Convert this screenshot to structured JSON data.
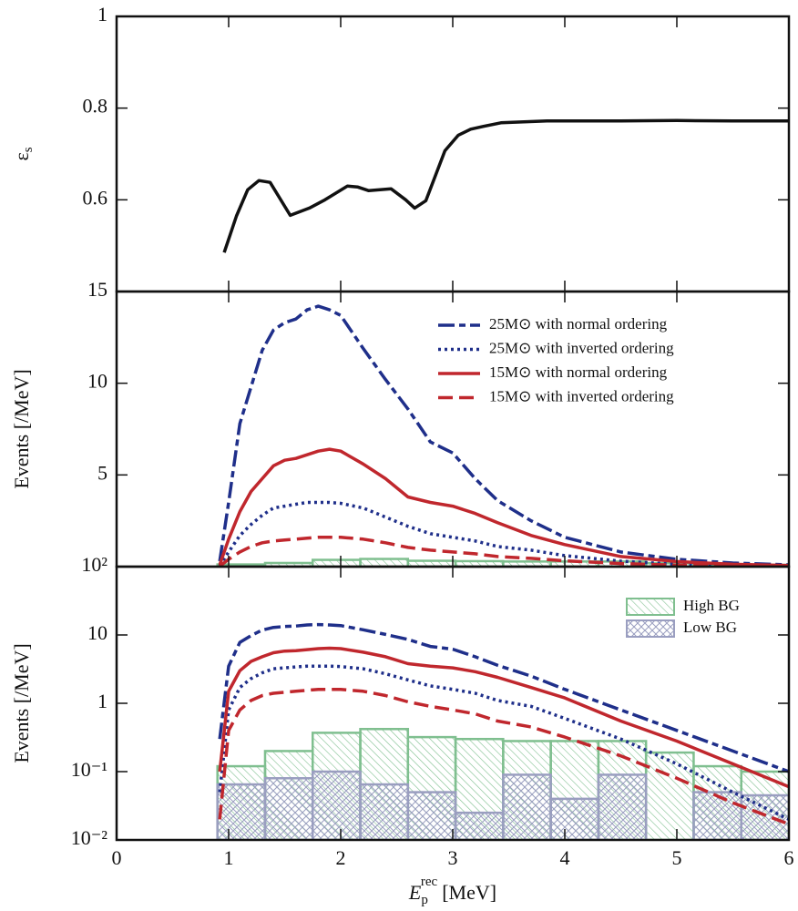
{
  "chart_data": [
    {
      "type": "line",
      "y_label": {
        "symbol": "ε",
        "sub": "s"
      },
      "xlim": [
        0,
        6
      ],
      "xticks": [
        0,
        1,
        2,
        3,
        4,
        5,
        6
      ],
      "x_tick_labels": false,
      "ylim": [
        0.4,
        1
      ],
      "yticks": [
        0.6,
        0.8,
        1
      ],
      "log_y": false,
      "x": [
        0.96,
        1.07,
        1.17,
        1.27,
        1.37,
        1.55,
        1.72,
        1.86,
        2.06,
        2.15,
        2.25,
        2.45,
        2.58,
        2.66,
        2.76,
        2.93,
        3.05,
        3.16,
        3.27,
        3.43,
        3.84,
        4.5,
        5.0,
        5.5,
        6.0
      ],
      "series": [
        {
          "color": "#111111",
          "style": "solid",
          "values": [
            0.485,
            0.565,
            0.622,
            0.642,
            0.638,
            0.566,
            0.582,
            0.6,
            0.63,
            0.628,
            0.62,
            0.624,
            0.6,
            0.582,
            0.598,
            0.707,
            0.741,
            0.754,
            0.76,
            0.768,
            0.772,
            0.772,
            0.773,
            0.772,
            0.772
          ]
        }
      ]
    },
    {
      "type": "line",
      "y_label": {
        "text": "Events [/MeV]"
      },
      "xlim": [
        0,
        6
      ],
      "xticks": [
        0,
        1,
        2,
        3,
        4,
        5,
        6
      ],
      "x_tick_labels": false,
      "ylim": [
        0,
        15
      ],
      "yticks": [
        5,
        10,
        15
      ],
      "log_y": false,
      "legend": "upper right",
      "x": [
        0.92,
        1.0,
        1.1,
        1.2,
        1.3,
        1.4,
        1.5,
        1.6,
        1.7,
        1.8,
        1.9,
        2.0,
        2.2,
        2.4,
        2.6,
        2.8,
        3.0,
        3.2,
        3.4,
        3.7,
        4.0,
        4.5,
        5.0,
        5.5,
        6.0
      ],
      "series": [
        {
          "name": "25M⊙ with normal ordering",
          "color": "#1f2f8a",
          "style": "dash-dot",
          "values": [
            0.3,
            3.5,
            7.8,
            9.8,
            11.8,
            12.9,
            13.3,
            13.5,
            14.0,
            14.2,
            14.0,
            13.7,
            11.9,
            10.2,
            8.6,
            6.8,
            6.2,
            4.8,
            3.6,
            2.5,
            1.6,
            0.8,
            0.4,
            0.2,
            0.1
          ]
        },
        {
          "name": "25M⊙ with inverted ordering",
          "color": "#1f2f8a",
          "style": "dotted",
          "values": [
            0.05,
            0.8,
            1.7,
            2.3,
            2.8,
            3.2,
            3.3,
            3.4,
            3.5,
            3.5,
            3.5,
            3.45,
            3.2,
            2.7,
            2.2,
            1.8,
            1.6,
            1.4,
            1.1,
            0.9,
            0.6,
            0.3,
            0.13,
            0.05,
            0.02
          ]
        },
        {
          "name": "15M⊙ with normal ordering",
          "color": "#c0272d",
          "style": "solid",
          "values": [
            0.1,
            1.5,
            3.0,
            4.1,
            4.8,
            5.5,
            5.8,
            5.9,
            6.1,
            6.3,
            6.4,
            6.3,
            5.6,
            4.8,
            3.8,
            3.5,
            3.3,
            2.9,
            2.4,
            1.7,
            1.2,
            0.55,
            0.28,
            0.13,
            0.06
          ]
        },
        {
          "name": "15M⊙ with inverted ordering",
          "color": "#c0272d",
          "style": "dashed",
          "values": [
            0.02,
            0.4,
            0.8,
            1.1,
            1.3,
            1.4,
            1.45,
            1.5,
            1.55,
            1.6,
            1.6,
            1.6,
            1.5,
            1.3,
            1.05,
            0.9,
            0.8,
            0.7,
            0.55,
            0.45,
            0.32,
            0.17,
            0.08,
            0.035,
            0.017
          ]
        }
      ],
      "histograms": [
        {
          "color": "#7fbf8f",
          "hatch": "diagonal",
          "bins": [
            0.9,
            1.325,
            1.75,
            2.175,
            2.6,
            3.025,
            3.45,
            3.875,
            4.3,
            4.725,
            5.15,
            5.575,
            6.0
          ],
          "counts": [
            0.12,
            0.2,
            0.37,
            0.42,
            0.32,
            0.3,
            0.28,
            0.28,
            0.28,
            0.19,
            0.12,
            0.1
          ]
        }
      ]
    },
    {
      "type": "line",
      "y_label": {
        "text": "Events [/MeV]"
      },
      "x_label": {
        "symbol": "E",
        "sub": "p",
        "sup": "rec",
        "unit": "[MeV]"
      },
      "xlim": [
        0,
        6
      ],
      "xticks": [
        0,
        1,
        2,
        3,
        4,
        5,
        6
      ],
      "x_tick_labels": true,
      "ylim": [
        0.01,
        100
      ],
      "log_y": true,
      "legend": "upper right",
      "yticks": [
        {
          "value": 0.01,
          "label": "10⁻²"
        },
        {
          "value": 0.1,
          "label": "10⁻¹"
        },
        1,
        10,
        {
          "value": 100,
          "label": "10²"
        }
      ],
      "x": [
        0.92,
        1.0,
        1.1,
        1.2,
        1.3,
        1.4,
        1.5,
        1.6,
        1.7,
        1.8,
        1.9,
        2.0,
        2.2,
        2.4,
        2.6,
        2.8,
        3.0,
        3.2,
        3.4,
        3.7,
        4.0,
        4.5,
        5.0,
        5.5,
        6.0
      ],
      "series": [
        {
          "color": "#1f2f8a",
          "style": "dash-dot",
          "values": [
            0.3,
            3.5,
            7.8,
            9.8,
            11.8,
            12.9,
            13.3,
            13.5,
            14.0,
            14.2,
            14.0,
            13.7,
            11.9,
            10.2,
            8.6,
            6.8,
            6.2,
            4.8,
            3.6,
            2.5,
            1.6,
            0.8,
            0.4,
            0.2,
            0.1
          ]
        },
        {
          "color": "#1f2f8a",
          "style": "dotted",
          "values": [
            0.05,
            0.8,
            1.7,
            2.3,
            2.8,
            3.2,
            3.3,
            3.4,
            3.5,
            3.5,
            3.5,
            3.45,
            3.2,
            2.7,
            2.2,
            1.8,
            1.6,
            1.4,
            1.1,
            0.9,
            0.6,
            0.3,
            0.13,
            0.05,
            0.02
          ]
        },
        {
          "color": "#c0272d",
          "style": "solid",
          "values": [
            0.1,
            1.5,
            3.0,
            4.1,
            4.8,
            5.5,
            5.8,
            5.9,
            6.1,
            6.3,
            6.4,
            6.3,
            5.6,
            4.8,
            3.8,
            3.5,
            3.3,
            2.9,
            2.4,
            1.7,
            1.2,
            0.55,
            0.28,
            0.13,
            0.06
          ]
        },
        {
          "color": "#c0272d",
          "style": "dashed",
          "values": [
            0.02,
            0.4,
            0.8,
            1.1,
            1.3,
            1.4,
            1.45,
            1.5,
            1.55,
            1.6,
            1.6,
            1.6,
            1.5,
            1.3,
            1.05,
            0.9,
            0.8,
            0.7,
            0.55,
            0.45,
            0.32,
            0.17,
            0.08,
            0.035,
            0.017
          ]
        }
      ],
      "histograms": [
        {
          "name": "High BG",
          "color": "#7fbf8f",
          "hatch": "diagonal",
          "bins": [
            0.9,
            1.325,
            1.75,
            2.175,
            2.6,
            3.025,
            3.45,
            3.875,
            4.3,
            4.725,
            5.15,
            5.575,
            6.0
          ],
          "counts": [
            0.12,
            0.2,
            0.37,
            0.42,
            0.32,
            0.3,
            0.28,
            0.28,
            0.28,
            0.19,
            0.12,
            0.1
          ]
        },
        {
          "name": "Low BG",
          "color": "#9a9ec0",
          "hatch": "cross",
          "bins": [
            0.9,
            1.325,
            1.75,
            2.175,
            2.6,
            3.025,
            3.45,
            3.875,
            4.3,
            4.725,
            5.15,
            5.575,
            6.0
          ],
          "counts": [
            0.065,
            0.08,
            0.1,
            0.065,
            0.05,
            0.025,
            0.09,
            0.04,
            0.09,
            0.01,
            0.05,
            0.045
          ]
        }
      ]
    }
  ]
}
